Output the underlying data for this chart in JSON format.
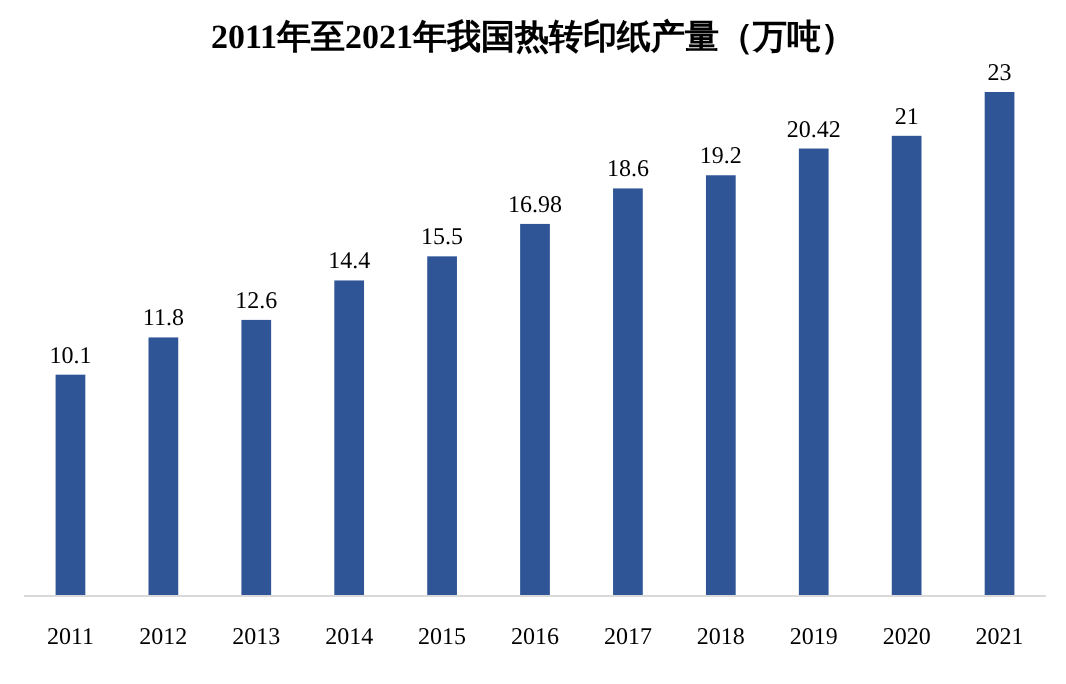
{
  "chart_data": {
    "type": "bar",
    "title": "2011年至2021年我国热转印纸产量（万吨）",
    "categories": [
      "2011",
      "2012",
      "2013",
      "2014",
      "2015",
      "2016",
      "2017",
      "2018",
      "2019",
      "2020",
      "2021"
    ],
    "values": [
      10.1,
      11.8,
      12.6,
      14.4,
      15.5,
      16.98,
      18.6,
      19.2,
      20.42,
      21,
      23
    ],
    "color": "#2f5597",
    "tick_labels": "x",
    "data_labels": true
  }
}
